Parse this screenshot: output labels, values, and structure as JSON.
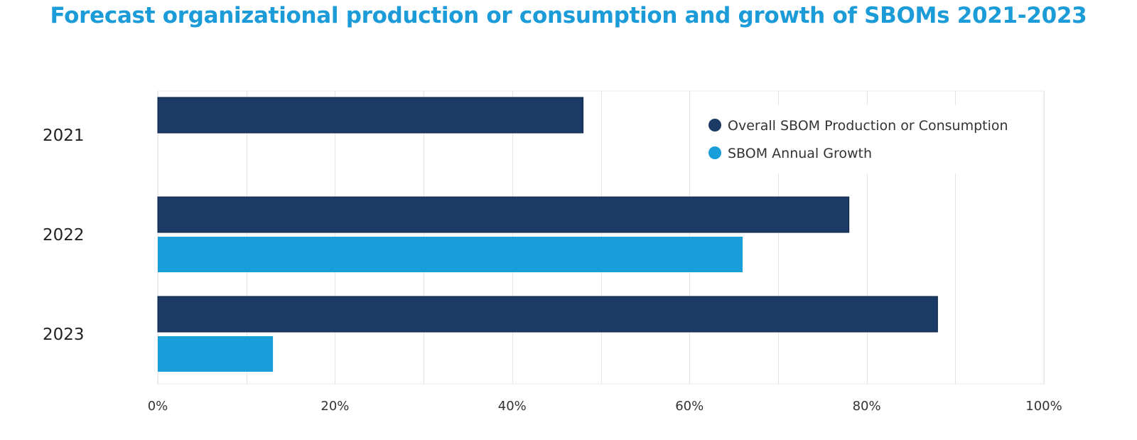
{
  "colors": {
    "title": "#1b9bd7",
    "overall": "#1b3a66",
    "growth": "#189ed8",
    "grid": "#e4e4e4",
    "frame": "#e8e8e8"
  },
  "chart_data": {
    "type": "bar",
    "orientation": "horizontal",
    "title": "Forecast organizational production or consumption and growth of SBOMs 2021-2023",
    "categories": [
      "2021",
      "2022",
      "2023"
    ],
    "series": [
      {
        "name": "Overall SBOM Production or Consumption",
        "values": [
          48,
          78,
          88
        ]
      },
      {
        "name": "SBOM Annual Growth",
        "values": [
          null,
          66,
          13
        ]
      }
    ],
    "xlim": [
      0,
      100
    ],
    "xticks": [
      0,
      20,
      40,
      60,
      80,
      100
    ],
    "xtick_labels": [
      "0%",
      "20%",
      "40%",
      "60%",
      "80%",
      "100%"
    ],
    "grid": true,
    "legend_position": "top-right"
  }
}
